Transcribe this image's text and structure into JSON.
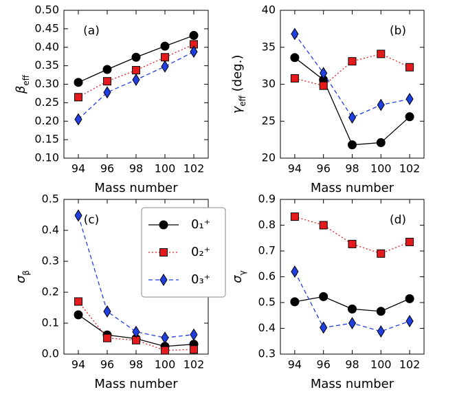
{
  "chart_data": [
    {
      "type": "line",
      "annotation": "(a)",
      "xlabel": "Mass number",
      "ylabel": {
        "symbol": "β",
        "subscript": "eff"
      },
      "x": [
        94,
        96,
        98,
        100,
        102
      ],
      "xlim": [
        93,
        103
      ],
      "xticks": [
        94,
        96,
        98,
        100,
        102
      ],
      "ylim": [
        0.1,
        0.5
      ],
      "yticks": [
        {
          "value": 0.1,
          "label": "0.10"
        },
        0.15,
        {
          "value": 0.2,
          "label": "0.20"
        },
        0.25,
        {
          "value": 0.3,
          "label": "0.30"
        },
        0.35,
        {
          "value": 0.4,
          "label": "0.40"
        },
        0.45,
        {
          "value": 0.5,
          "label": "0.50"
        }
      ],
      "series": [
        {
          "color": "#000000",
          "marker": "circle",
          "linestyle": "solid",
          "values": [
            0.305,
            0.34,
            0.373,
            0.403,
            0.432
          ]
        },
        {
          "color": "#e41a1c",
          "marker": "square",
          "linestyle": "dotted",
          "values": [
            0.265,
            0.308,
            0.338,
            0.373,
            0.408
          ]
        },
        {
          "color": "#1f3fe0",
          "marker": "diamond",
          "linestyle": "dashed",
          "values": [
            0.205,
            0.278,
            0.312,
            0.348,
            0.388
          ]
        }
      ]
    },
    {
      "type": "line",
      "annotation": "(b)",
      "xlabel": "Mass number",
      "ylabel": {
        "symbol": "γ",
        "subscript": "eff",
        "unit": " (deg.)"
      },
      "x": [
        94,
        96,
        98,
        100,
        102
      ],
      "xlim": [
        93,
        103
      ],
      "xticks": [
        94,
        96,
        98,
        100,
        102
      ],
      "ylim": [
        20,
        40
      ],
      "yticks": [
        20,
        25,
        30,
        35,
        40
      ],
      "series": [
        {
          "color": "#000000",
          "marker": "circle",
          "linestyle": "solid",
          "values": [
            33.6,
            30.6,
            21.8,
            22.1,
            25.6
          ]
        },
        {
          "color": "#e41a1c",
          "marker": "square",
          "linestyle": "dotted",
          "values": [
            30.8,
            29.8,
            33.1,
            34.1,
            32.3
          ]
        },
        {
          "color": "#1f3fe0",
          "marker": "diamond",
          "linestyle": "dashed",
          "values": [
            36.8,
            31.5,
            25.5,
            27.2,
            28.0
          ]
        }
      ]
    },
    {
      "type": "line",
      "annotation": "(c)",
      "xlabel": "Mass number",
      "ylabel": {
        "symbol": "σ",
        "subscript": "β"
      },
      "legend": "upper right",
      "x": [
        94,
        96,
        98,
        100,
        102
      ],
      "xlim": [
        93,
        103
      ],
      "xticks": [
        94,
        96,
        98,
        100,
        102
      ],
      "ylim": [
        0.0,
        0.5
      ],
      "yticks": [
        {
          "value": 0.0,
          "label": "0.0"
        },
        0.1,
        0.2,
        0.3,
        0.4,
        0.5
      ],
      "series": [
        {
          "name": "0₁⁺",
          "color": "#000000",
          "marker": "circle",
          "linestyle": "solid",
          "values": [
            0.127,
            0.062,
            0.05,
            0.025,
            0.032
          ]
        },
        {
          "name": "0₂⁺",
          "color": "#e41a1c",
          "marker": "square",
          "linestyle": "dotted",
          "values": [
            0.17,
            0.052,
            0.045,
            0.012,
            0.015
          ]
        },
        {
          "name": "0₃⁺",
          "color": "#1f3fe0",
          "marker": "diamond",
          "linestyle": "dashed",
          "values": [
            0.448,
            0.138,
            0.072,
            0.053,
            0.063
          ]
        }
      ]
    },
    {
      "type": "line",
      "annotation": "(d)",
      "xlabel": "Mass number",
      "ylabel": {
        "symbol": "σ",
        "subscript": "γ"
      },
      "x": [
        94,
        96,
        98,
        100,
        102
      ],
      "xlim": [
        93,
        103
      ],
      "xticks": [
        94,
        96,
        98,
        100,
        102
      ],
      "ylim": [
        0.3,
        0.9
      ],
      "yticks": [
        0.3,
        0.4,
        0.5,
        0.6,
        0.7,
        0.8,
        0.9
      ],
      "series": [
        {
          "color": "#000000",
          "marker": "circle",
          "linestyle": "solid",
          "values": [
            0.503,
            0.523,
            0.475,
            0.466,
            0.515
          ]
        },
        {
          "color": "#e41a1c",
          "marker": "square",
          "linestyle": "dotted",
          "values": [
            0.833,
            0.8,
            0.727,
            0.69,
            0.735
          ]
        },
        {
          "color": "#1f3fe0",
          "marker": "diamond",
          "linestyle": "dashed",
          "values": [
            0.62,
            0.403,
            0.42,
            0.388,
            0.428
          ]
        }
      ]
    }
  ]
}
